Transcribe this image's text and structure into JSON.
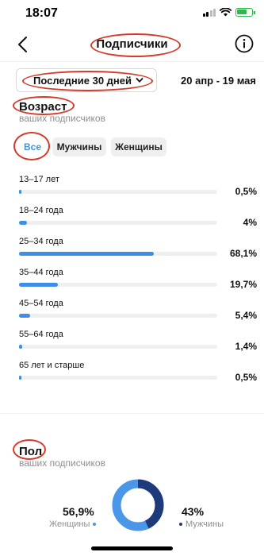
{
  "status": {
    "time": "18:07"
  },
  "nav": {
    "title": "Подписчики"
  },
  "filters": {
    "period": "Последние 30 дней",
    "date_range": "20 апр - 19 мая"
  },
  "age": {
    "title": "Возраст",
    "subtitle": "ваших подписчиков",
    "segments": [
      "Все",
      "Мужчины",
      "Женщины"
    ],
    "active_segment": 0,
    "rows": [
      {
        "label": "13–17 лет",
        "value": "0,5%",
        "fraction": 0.005
      },
      {
        "label": "18–24 года",
        "value": "4%",
        "fraction": 0.04
      },
      {
        "label": "25–34 года",
        "value": "68,1%",
        "fraction": 0.681
      },
      {
        "label": "35–44 года",
        "value": "19,7%",
        "fraction": 0.197
      },
      {
        "label": "45–54 года",
        "value": "5,4%",
        "fraction": 0.054
      },
      {
        "label": "55–64 года",
        "value": "1,4%",
        "fraction": 0.014
      },
      {
        "label": "65 лет и старше",
        "value": "0,5%",
        "fraction": 0.005
      }
    ]
  },
  "gender": {
    "title": "Пол",
    "subtitle": "ваших подписчиков",
    "female": {
      "value": "56,9%",
      "label": "Женщины",
      "fraction": 0.569,
      "color": "#4a97ea"
    },
    "male": {
      "value": "43%",
      "label": "Мужчины",
      "fraction": 0.43,
      "color": "#1f3a7a"
    }
  },
  "colors": {
    "accent": "#3c8ee6",
    "annotation": "#d63a2a",
    "track": "#efefef"
  }
}
